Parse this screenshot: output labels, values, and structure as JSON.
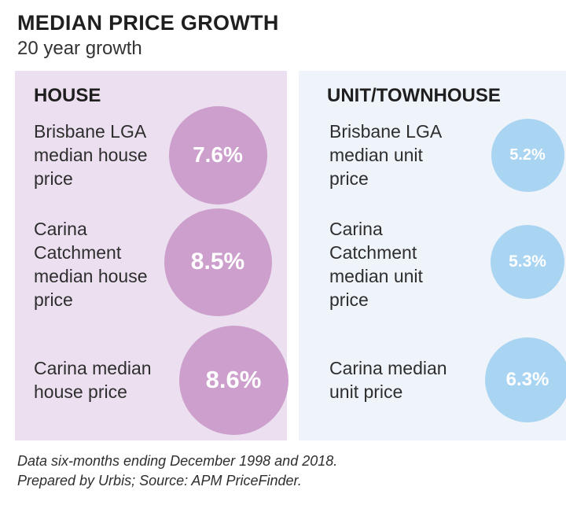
{
  "header": {
    "title": "MEDIAN PRICE GROWTH",
    "subtitle": "20 year growth"
  },
  "chart_data": {
    "type": "table",
    "title": "MEDIAN PRICE GROWTH",
    "subtitle": "20 year growth",
    "unit": "%",
    "groups": [
      {
        "name": "HOUSE",
        "color": "#cc9fcd",
        "items": [
          {
            "label": "Brisbane LGA\nmedian house\nprice",
            "value": 7.6,
            "value_label": "7.6%"
          },
          {
            "label": "Carina\nCatchment\nmedian house\nprice",
            "value": 8.5,
            "value_label": "8.5%"
          },
          {
            "label": "Carina median\nhouse price",
            "value": 8.6,
            "value_label": "8.6%"
          }
        ]
      },
      {
        "name": "UNIT/TOWNHOUSE",
        "color": "#a9d4f2",
        "items": [
          {
            "label": "Brisbane LGA\nmedian unit\nprice",
            "value": 5.2,
            "value_label": "5.2%"
          },
          {
            "label": "Carina\nCatchment\nmedian unit\nprice",
            "value": 5.3,
            "value_label": "5.3%"
          },
          {
            "label": "Carina median\nunit price",
            "value": 6.3,
            "value_label": "6.3%"
          }
        ]
      }
    ]
  },
  "footnotes": [
    "Data six-months ending December 1998 and 2018.",
    "Prepared by Urbis; Source: APM PriceFinder."
  ],
  "colors": {
    "house_panel_bg": "#ece0f0",
    "unit_panel_bg": "#eff4fb",
    "house_circle": "#cc9fcd",
    "unit_circle": "#a9d4f2"
  }
}
